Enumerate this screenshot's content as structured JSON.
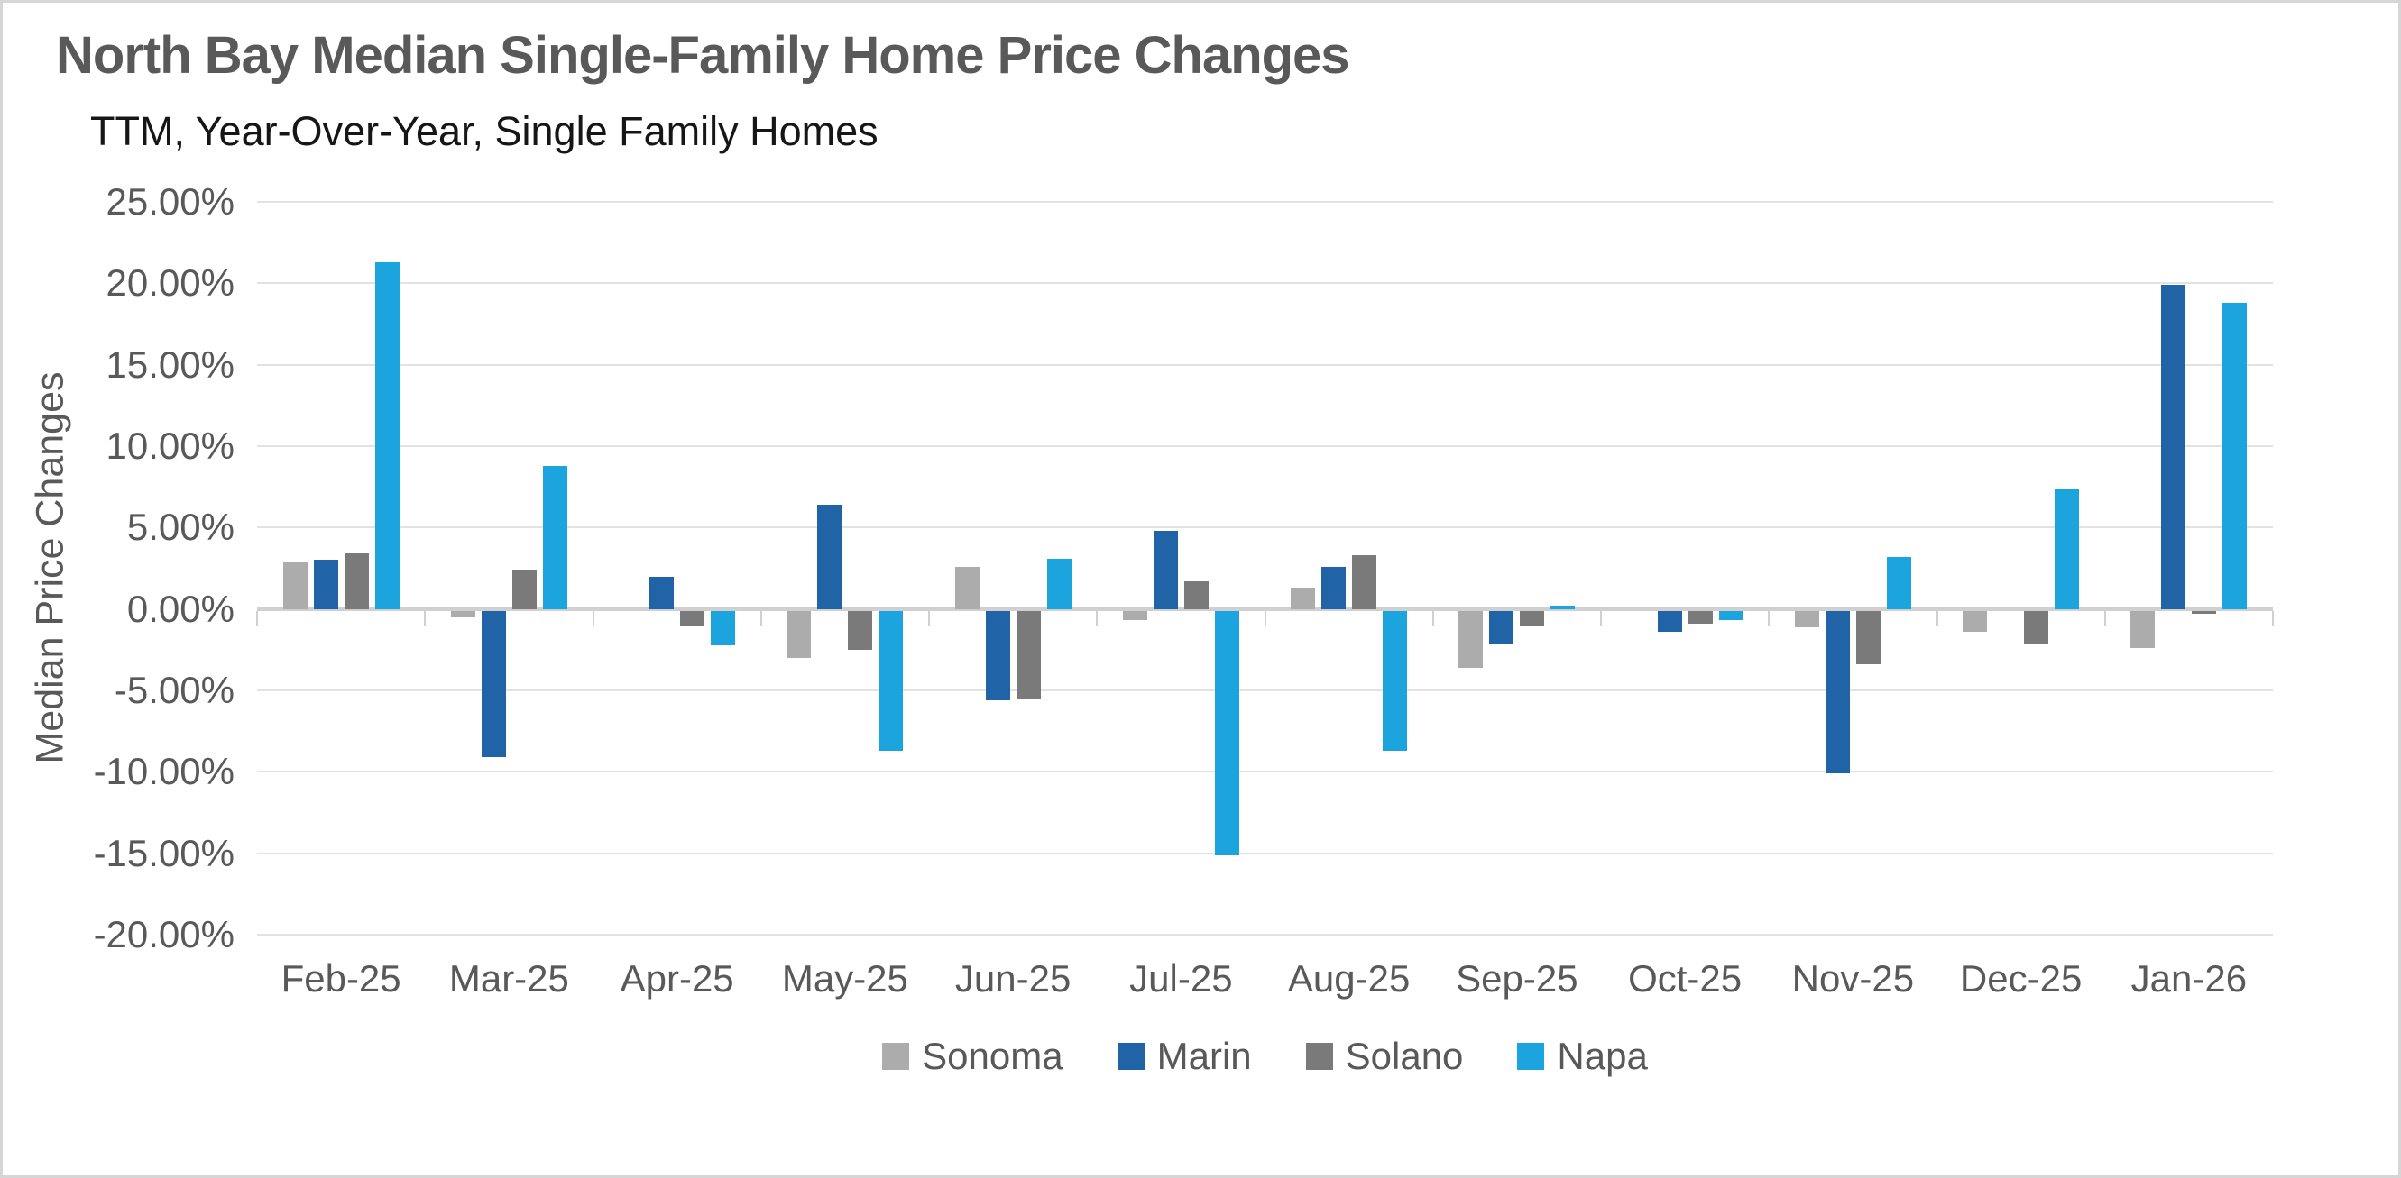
{
  "chart_data": {
    "type": "bar",
    "title": "North Bay Median Single-Family Home Price Changes",
    "subtitle": "TTM, Year-Over-Year, Single Family Homes",
    "xlabel": "",
    "ylabel": "Median Price Changes",
    "ylim": [
      -20,
      25
    ],
    "ytick_step": 5,
    "ytick_labels": [
      "25.00%",
      "20.00%",
      "15.00%",
      "10.00%",
      "5.00%",
      "0.00%",
      "-5.00%",
      "-10.00%",
      "-15.00%",
      "-20.00%"
    ],
    "ytick_values": [
      25,
      20,
      15,
      10,
      5,
      0,
      -5,
      -10,
      -15,
      -20
    ],
    "grid": true,
    "legend_position": "bottom",
    "categories": [
      "Feb-25",
      "Mar-25",
      "Apr-25",
      "May-25",
      "Jun-25",
      "Jul-25",
      "Aug-25",
      "Sep-25",
      "Oct-25",
      "Nov-25",
      "Dec-25",
      "Jan-26"
    ],
    "series": [
      {
        "name": "Sonoma",
        "color": "#acacac",
        "values": [
          2.9,
          -0.4,
          0.0,
          -2.9,
          2.6,
          -0.6,
          1.3,
          -3.5,
          0.0,
          -1.0,
          -1.3,
          -2.3
        ]
      },
      {
        "name": "Marin",
        "color": "#2063a7",
        "values": [
          3.0,
          -9.0,
          2.0,
          6.4,
          -5.5,
          4.8,
          2.6,
          -2.0,
          -1.3,
          -10.0,
          0.0,
          19.9
        ]
      },
      {
        "name": "Solano",
        "color": "#7a7a7a",
        "values": [
          3.4,
          2.4,
          -0.9,
          -2.4,
          -5.4,
          1.7,
          3.3,
          -0.9,
          -0.8,
          -3.3,
          -2.0,
          -0.2
        ]
      },
      {
        "name": "Napa",
        "color": "#1ca4de",
        "values": [
          21.3,
          8.8,
          -2.1,
          -8.6,
          3.1,
          -15.0,
          -8.6,
          0.2,
          -0.6,
          3.2,
          7.4,
          18.8
        ]
      }
    ],
    "colors": {
      "title": "#595959",
      "subtitle": "#161616",
      "axis_text": "#595959",
      "gridline": "#e2e2e2",
      "zero_line": "#d0d0d0",
      "background": "#ffffff",
      "border": "#d6d6d6"
    }
  }
}
